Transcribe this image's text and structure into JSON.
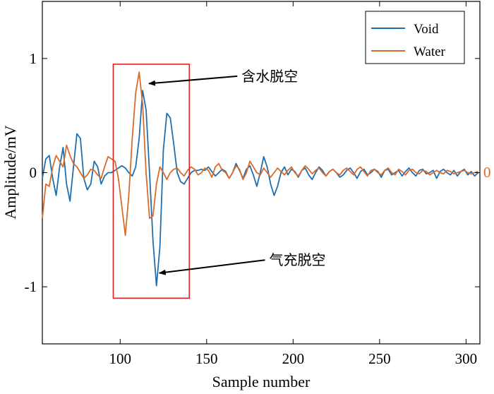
{
  "chart_data": {
    "type": "line",
    "title": "",
    "xlabel": "Sample number",
    "ylabel": "Amplitude/mV",
    "xlim": [
      55,
      308
    ],
    "ylim": [
      -1.5,
      1.5
    ],
    "xticks": [
      100,
      150,
      200,
      250,
      300
    ],
    "yticks": [
      -1,
      0,
      1
    ],
    "ytick_labels": [
      "-1",
      "0",
      "1"
    ],
    "grid": false,
    "legend_position": "top-right",
    "series": [
      {
        "name": "Void",
        "color": "#1f6fb0",
        "x": [
          55,
          57,
          59,
          61,
          63,
          65,
          67,
          69,
          71,
          73,
          75,
          77,
          79,
          81,
          83,
          85,
          87,
          89,
          91,
          93,
          95,
          97,
          99,
          101,
          103,
          105,
          107,
          109,
          111,
          113,
          115,
          117,
          119,
          121,
          123,
          125,
          127,
          129,
          131,
          133,
          135,
          137,
          139,
          141,
          143,
          145,
          147,
          149,
          151,
          153,
          155,
          157,
          159,
          161,
          163,
          165,
          167,
          169,
          171,
          173,
          175,
          177,
          179,
          181,
          183,
          185,
          187,
          189,
          191,
          193,
          195,
          197,
          199,
          201,
          203,
          205,
          207,
          209,
          211,
          213,
          215,
          217,
          219,
          221,
          223,
          225,
          227,
          229,
          231,
          233,
          235,
          237,
          239,
          241,
          243,
          245,
          247,
          249,
          251,
          253,
          255,
          257,
          259,
          261,
          263,
          265,
          267,
          269,
          271,
          273,
          275,
          277,
          279,
          281,
          283,
          285,
          287,
          289,
          291,
          293,
          295,
          297,
          299,
          301,
          303,
          305,
          307
        ],
        "y": [
          -0.05,
          0.12,
          0.15,
          -0.05,
          -0.2,
          0.05,
          0.22,
          -0.1,
          -0.25,
          0.05,
          0.34,
          0.3,
          -0.05,
          -0.15,
          -0.1,
          0.1,
          0.05,
          -0.1,
          -0.03,
          0.0,
          0.0,
          0.02,
          0.04,
          0.06,
          0.04,
          0.0,
          -0.03,
          0.05,
          0.3,
          0.72,
          0.55,
          0.0,
          -0.6,
          -0.99,
          -0.65,
          0.2,
          0.52,
          0.48,
          0.25,
          0.0,
          -0.08,
          -0.1,
          -0.05,
          0.0,
          0.02,
          0.02,
          0.03,
          0.02,
          0.05,
          0.01,
          -0.03,
          0.0,
          0.03,
          0.01,
          -0.05,
          0.0,
          0.08,
          0.02,
          -0.05,
          0.03,
          0.06,
          -0.02,
          -0.12,
          0.0,
          0.14,
          0.05,
          -0.1,
          -0.2,
          -0.12,
          0.0,
          0.05,
          -0.02,
          0.03,
          0.01,
          -0.04,
          0.02,
          0.04,
          -0.02,
          -0.06,
          0.0,
          0.05,
          0.02,
          -0.03,
          0.01,
          0.03,
          0.0,
          -0.04,
          -0.02,
          0.02,
          0.04,
          0.0,
          -0.05,
          0.01,
          0.03,
          -0.02,
          0.0,
          0.03,
          0.01,
          -0.04,
          0.02,
          0.03,
          -0.02,
          0.0,
          0.02,
          -0.03,
          0.01,
          0.04,
          0.0,
          -0.03,
          0.02,
          0.03,
          -0.01,
          0.0,
          0.02,
          -0.05,
          0.01,
          0.03,
          0.0,
          -0.02,
          0.02,
          -0.03,
          0.01,
          0.03,
          -0.02,
          0.01,
          -0.03,
          0.0
        ]
      },
      {
        "name": "Water",
        "color": "#d96b2b",
        "x": [
          55,
          57,
          59,
          61,
          63,
          65,
          67,
          69,
          71,
          73,
          75,
          77,
          79,
          81,
          83,
          85,
          87,
          89,
          91,
          93,
          95,
          97,
          99,
          101,
          103,
          105,
          107,
          109,
          111,
          113,
          115,
          117,
          119,
          121,
          123,
          125,
          127,
          129,
          131,
          133,
          135,
          137,
          139,
          141,
          143,
          145,
          147,
          149,
          151,
          153,
          155,
          157,
          159,
          161,
          163,
          165,
          167,
          169,
          171,
          173,
          175,
          177,
          179,
          181,
          183,
          185,
          187,
          189,
          191,
          193,
          195,
          197,
          199,
          201,
          203,
          205,
          207,
          209,
          211,
          213,
          215,
          217,
          219,
          221,
          223,
          225,
          227,
          229,
          231,
          233,
          235,
          237,
          239,
          241,
          243,
          245,
          247,
          249,
          251,
          253,
          255,
          257,
          259,
          261,
          263,
          265,
          267,
          269,
          271,
          273,
          275,
          277,
          279,
          281,
          283,
          285,
          287,
          289,
          291,
          293,
          295,
          297,
          299,
          301,
          303,
          305,
          307
        ],
        "y": [
          -0.4,
          -0.1,
          -0.12,
          0.05,
          0.15,
          0.1,
          0.05,
          0.24,
          0.15,
          0.08,
          0.05,
          0.0,
          -0.05,
          -0.02,
          0.03,
          0.02,
          -0.02,
          -0.05,
          0.05,
          0.14,
          0.12,
          0.1,
          -0.05,
          -0.3,
          -0.55,
          -0.2,
          0.3,
          0.7,
          0.88,
          0.6,
          0.0,
          -0.4,
          -0.38,
          -0.1,
          0.05,
          0.0,
          -0.06,
          0.0,
          0.03,
          0.04,
          0.0,
          -0.03,
          0.02,
          0.05,
          0.03,
          -0.02,
          0.0,
          0.04,
          0.02,
          -0.04,
          0.05,
          0.08,
          0.02,
          0.0,
          -0.05,
          0.0,
          0.06,
          0.03,
          -0.06,
          0.0,
          0.1,
          0.05,
          0.0,
          -0.02,
          0.04,
          0.0,
          -0.04,
          0.0,
          0.04,
          0.01,
          -0.02,
          0.02,
          0.05,
          0.0,
          -0.03,
          0.02,
          0.06,
          0.03,
          -0.01,
          0.02,
          0.04,
          0.0,
          -0.03,
          0.01,
          0.03,
          0.0,
          -0.02,
          0.02,
          0.04,
          0.01,
          -0.02,
          0.03,
          0.05,
          0.01,
          -0.03,
          0.02,
          0.03,
          0.0,
          -0.02,
          0.02,
          0.04,
          0.0,
          -0.02,
          0.03,
          0.01,
          -0.02,
          0.02,
          0.03,
          0.0,
          -0.01,
          0.02,
          0.01,
          -0.02,
          0.0,
          0.02,
          0.0,
          -0.01,
          0.02,
          0.01,
          -0.01,
          0.0,
          0.01,
          0.02,
          0.0,
          -0.01,
          0.0,
          0.01
        ]
      }
    ],
    "edge_label": "0",
    "annotations": [
      {
        "text": "含水脱空",
        "target_x": 115,
        "target_y": 0.78,
        "label_anchor_x": 140,
        "label_anchor_y": 0.82
      },
      {
        "text": "气充脱空",
        "target_x": 121,
        "target_y": -0.88,
        "label_anchor_x": 156,
        "label_anchor_y": -0.79
      }
    ],
    "highlight_box": {
      "x0": 96,
      "x1": 140,
      "y0": -1.1,
      "y1": 0.95,
      "color": "#e02020"
    }
  }
}
